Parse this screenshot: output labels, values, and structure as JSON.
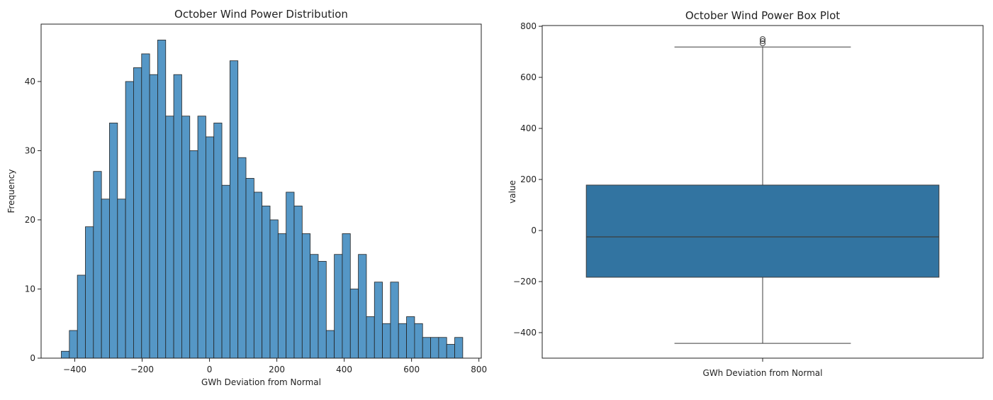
{
  "chart_data": [
    {
      "type": "histogram",
      "title": "October Wind Power Distribution",
      "xlabel": "GWh Deviation from Normal",
      "ylabel": "Frequency",
      "bins": [
        -440,
        -416.16,
        -392.32,
        -368.48,
        -344.64,
        -320.8,
        -296.96,
        -273.12,
        -249.28,
        -225.44,
        -201.6,
        -177.76,
        -153.92,
        -130.08,
        -106.24,
        -82.4,
        -58.56,
        -34.72,
        -10.88,
        12.96,
        36.8,
        60.64,
        84.48,
        108.32,
        132.16,
        156,
        179.84,
        203.68,
        227.52,
        251.36,
        275.2,
        299.04,
        322.88,
        346.72,
        370.56,
        394.4,
        418.24,
        442.08,
        465.92,
        489.76,
        513.6,
        537.44,
        561.28,
        585.12,
        608.96,
        632.8,
        656.64,
        680.48,
        704.32,
        728.16,
        752
      ],
      "counts": [
        1,
        4,
        12,
        19,
        27,
        23,
        34,
        23,
        40,
        42,
        44,
        41,
        46,
        35,
        41,
        35,
        30,
        35,
        32,
        34,
        25,
        43,
        29,
        26,
        24,
        22,
        20,
        18,
        24,
        22,
        18,
        15,
        14,
        4,
        15,
        18,
        10,
        15,
        6,
        11,
        5,
        11,
        5,
        6,
        5,
        3,
        3,
        3,
        2,
        3
      ],
      "color": "#5597c6",
      "xlim": [
        -500,
        807
      ],
      "xticks": [
        {
          "value": -400,
          "label": "−400"
        },
        {
          "value": -200,
          "label": "−200"
        },
        0,
        200,
        400,
        600,
        800
      ],
      "ylim": [
        0,
        48.3
      ],
      "yticks": [
        0,
        10,
        20,
        30,
        40
      ]
    },
    {
      "type": "box",
      "title": "October Wind Power Box Plot",
      "ylabel": "value",
      "categories": [
        "GWh Deviation from Normal"
      ],
      "color": "#3274a1",
      "whisker_low": -442,
      "q1": -183,
      "median": -25,
      "q3": 178,
      "whisker_high": 719,
      "outliers": [
        733,
        742,
        750
      ],
      "ylim": [
        -500,
        803
      ],
      "yticks": [
        {
          "value": -400,
          "label": "−400"
        },
        {
          "value": -200,
          "label": "−200"
        },
        0,
        200,
        400,
        600,
        800
      ]
    }
  ]
}
